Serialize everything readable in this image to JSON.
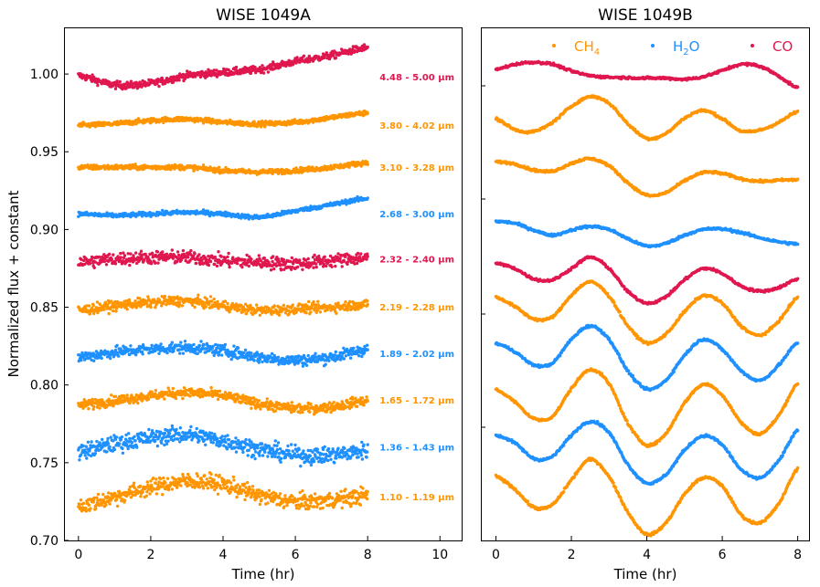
{
  "chart_data": [
    {
      "type": "scatter",
      "title": "WISE 1049A",
      "xlabel": "Time (hr)",
      "ylabel": "Normalized flux + constant",
      "xlim": [
        -0.4,
        10.6
      ],
      "ylim": [
        0.7,
        1.03
      ],
      "xticks": [
        "0",
        "2",
        "4",
        "6",
        "8",
        "10"
      ],
      "yticks": [
        "0.70",
        "0.75",
        "0.80",
        "0.85",
        "0.90",
        "0.95",
        "1.00"
      ],
      "series": [
        {
          "name": "4.48 - 5.00 μm",
          "molecule": "CO",
          "color": "#e0174f",
          "offset": 0.998,
          "noise": 0.0022,
          "t": [
            0,
            1,
            2,
            3,
            4,
            5,
            6,
            7,
            8
          ],
          "y": [
            0.999,
            0.993,
            0.994,
            0.999,
            1.001,
            1.003,
            1.008,
            1.012,
            1.017
          ]
        },
        {
          "name": "3.80 - 4.02 μm",
          "molecule": "CH4",
          "color": "#ff9500",
          "offset": 0.967,
          "noise": 0.0015,
          "t": [
            0,
            1,
            2,
            3,
            4,
            5,
            6,
            7,
            8
          ],
          "y": [
            0.967,
            0.968,
            0.97,
            0.971,
            0.969,
            0.968,
            0.969,
            0.972,
            0.975
          ]
        },
        {
          "name": "3.10 - 3.28 μm",
          "molecule": "CH4",
          "color": "#ff9500",
          "offset": 0.94,
          "noise": 0.0015,
          "t": [
            0,
            1,
            2,
            3,
            4,
            5,
            6,
            7,
            8
          ],
          "y": [
            0.94,
            0.94,
            0.94,
            0.94,
            0.938,
            0.937,
            0.938,
            0.94,
            0.943
          ]
        },
        {
          "name": "2.68 - 3.00 μm",
          "molecule": "H2O",
          "color": "#1e90ff",
          "offset": 0.91,
          "noise": 0.0013,
          "t": [
            0,
            1,
            2,
            3,
            4,
            5,
            6,
            7,
            8
          ],
          "y": [
            0.91,
            0.909,
            0.91,
            0.911,
            0.91,
            0.908,
            0.912,
            0.916,
            0.92
          ]
        },
        {
          "name": "2.32 - 2.40 μm",
          "molecule": "CO",
          "color": "#e0174f",
          "offset": 0.881,
          "noise": 0.004,
          "t": [
            0,
            1,
            2,
            3,
            4,
            5,
            6,
            7,
            8
          ],
          "y": [
            0.879,
            0.881,
            0.882,
            0.882,
            0.88,
            0.879,
            0.878,
            0.88,
            0.882
          ]
        },
        {
          "name": "2.19 - 2.28 μm",
          "molecule": "CH4",
          "color": "#ff9500",
          "offset": 0.85,
          "noise": 0.003,
          "t": [
            0,
            1,
            2,
            3,
            4,
            5,
            6,
            7,
            8
          ],
          "y": [
            0.848,
            0.851,
            0.853,
            0.854,
            0.851,
            0.848,
            0.849,
            0.85,
            0.852
          ]
        },
        {
          "name": "1.89 - 2.02 μm",
          "molecule": "H2O",
          "color": "#1e90ff",
          "offset": 0.82,
          "noise": 0.0035,
          "t": [
            0,
            1,
            2,
            3,
            4,
            5,
            6,
            7,
            8
          ],
          "y": [
            0.818,
            0.821,
            0.823,
            0.824,
            0.822,
            0.818,
            0.816,
            0.818,
            0.823
          ]
        },
        {
          "name": "1.65 - 1.72 μm",
          "molecule": "CH4",
          "color": "#ff9500",
          "offset": 0.79,
          "noise": 0.003,
          "t": [
            0,
            1,
            2,
            3,
            4,
            5,
            6,
            7,
            8
          ],
          "y": [
            0.787,
            0.79,
            0.793,
            0.795,
            0.793,
            0.788,
            0.785,
            0.786,
            0.79
          ]
        },
        {
          "name": "1.36 - 1.43 μm",
          "molecule": "H2O",
          "color": "#1e90ff",
          "offset": 0.76,
          "noise": 0.005,
          "t": [
            0,
            1,
            2,
            3,
            4,
            5,
            6,
            7,
            8
          ],
          "y": [
            0.757,
            0.762,
            0.766,
            0.768,
            0.764,
            0.759,
            0.755,
            0.755,
            0.758
          ]
        },
        {
          "name": "1.10 - 1.19 μm",
          "molecule": "CH4",
          "color": "#ff9500",
          "offset": 0.728,
          "noise": 0.005,
          "t": [
            0,
            1,
            2,
            3,
            4,
            5,
            6,
            7,
            8
          ],
          "y": [
            0.722,
            0.728,
            0.734,
            0.738,
            0.736,
            0.729,
            0.725,
            0.726,
            0.729
          ]
        }
      ]
    },
    {
      "type": "scatter",
      "title": "WISE 1049B",
      "xlabel": "Time (hr)",
      "ylabel": "",
      "xlim": [
        -0.4,
        8.3
      ],
      "ylim": [
        0.0,
        1.0
      ],
      "xticks": [
        "0",
        "2",
        "4",
        "6",
        "8"
      ],
      "legend": {
        "location": "top-right",
        "entries": [
          {
            "label_base": "CH",
            "label_sub": "4",
            "color": "#ff9500"
          },
          {
            "label_base": "H",
            "label_sub": "2",
            "label_tail": "O",
            "color": "#1e90ff"
          },
          {
            "label_base": "CO",
            "label_sub": "",
            "label_tail": "",
            "color": "#e0174f"
          }
        ]
      },
      "series": [
        {
          "molecule": "CO",
          "color": "#e0174f",
          "t": [
            0,
            0.5,
            1.0,
            1.5,
            2.0,
            2.5,
            3.0,
            3.5,
            4.0,
            4.5,
            5.0,
            5.5,
            6.0,
            6.5,
            7.0,
            7.5,
            8.0
          ],
          "y": [
            0.918,
            0.928,
            0.932,
            0.928,
            0.915,
            0.906,
            0.903,
            0.902,
            0.901,
            0.901,
            0.899,
            0.904,
            0.916,
            0.928,
            0.924,
            0.905,
            0.882
          ]
        },
        {
          "molecule": "CH4",
          "color": "#ff9500",
          "t": [
            0,
            0.5,
            1.0,
            1.5,
            2.0,
            2.5,
            3.0,
            3.5,
            4.0,
            4.5,
            5.0,
            5.5,
            6.0,
            6.5,
            7.0,
            7.5,
            8.0
          ],
          "y": [
            0.822,
            0.801,
            0.797,
            0.815,
            0.846,
            0.865,
            0.852,
            0.812,
            0.784,
            0.793,
            0.823,
            0.838,
            0.822,
            0.798,
            0.8,
            0.815,
            0.836
          ]
        },
        {
          "molecule": "CH4",
          "color": "#ff9500",
          "t": [
            0,
            0.5,
            1.0,
            1.5,
            2.0,
            2.5,
            3.0,
            3.5,
            4.0,
            4.5,
            5.0,
            5.5,
            6.0,
            6.5,
            7.0,
            7.5,
            8.0
          ],
          "y": [
            0.738,
            0.734,
            0.722,
            0.72,
            0.735,
            0.744,
            0.73,
            0.697,
            0.673,
            0.678,
            0.701,
            0.717,
            0.715,
            0.705,
            0.7,
            0.702,
            0.703
          ]
        },
        {
          "molecule": "H2O",
          "color": "#1e90ff",
          "t": [
            0,
            0.5,
            1.0,
            1.5,
            2.0,
            2.5,
            3.0,
            3.5,
            4.0,
            4.5,
            5.0,
            5.5,
            6.0,
            6.5,
            7.0,
            7.5,
            8.0
          ],
          "y": [
            0.622,
            0.618,
            0.605,
            0.595,
            0.605,
            0.612,
            0.606,
            0.588,
            0.574,
            0.579,
            0.595,
            0.606,
            0.607,
            0.6,
            0.59,
            0.582,
            0.578
          ]
        },
        {
          "molecule": "CO",
          "color": "#e0174f",
          "t": [
            0,
            0.5,
            1.0,
            1.5,
            2.0,
            2.5,
            3.0,
            3.5,
            4.0,
            4.5,
            5.0,
            5.5,
            6.0,
            6.5,
            7.0,
            7.5,
            8.0
          ],
          "y": [
            0.54,
            0.53,
            0.51,
            0.508,
            0.53,
            0.552,
            0.53,
            0.485,
            0.463,
            0.475,
            0.508,
            0.53,
            0.52,
            0.496,
            0.486,
            0.493,
            0.51
          ]
        },
        {
          "molecule": "CH4",
          "color": "#ff9500",
          "t": [
            0,
            0.5,
            1.0,
            1.5,
            2.0,
            2.5,
            3.0,
            3.5,
            4.0,
            4.5,
            5.0,
            5.5,
            6.0,
            6.5,
            7.0,
            7.5,
            8.0
          ],
          "y": [
            0.474,
            0.456,
            0.432,
            0.436,
            0.478,
            0.504,
            0.476,
            0.418,
            0.385,
            0.402,
            0.446,
            0.477,
            0.462,
            0.418,
            0.4,
            0.428,
            0.474
          ]
        },
        {
          "molecule": "H2O",
          "color": "#1e90ff",
          "t": [
            0,
            0.5,
            1.0,
            1.5,
            2.0,
            2.5,
            3.0,
            3.5,
            4.0,
            4.5,
            5.0,
            5.5,
            6.0,
            6.5,
            7.0,
            7.5,
            8.0
          ],
          "y": [
            0.384,
            0.368,
            0.342,
            0.346,
            0.392,
            0.418,
            0.392,
            0.33,
            0.295,
            0.312,
            0.361,
            0.392,
            0.372,
            0.331,
            0.312,
            0.342,
            0.386
          ]
        },
        {
          "molecule": "CH4",
          "color": "#ff9500",
          "t": [
            0,
            0.5,
            1.0,
            1.5,
            2.0,
            2.5,
            3.0,
            3.5,
            4.0,
            4.5,
            5.0,
            5.5,
            6.0,
            6.5,
            7.0,
            7.5,
            8.0
          ],
          "y": [
            0.294,
            0.27,
            0.238,
            0.242,
            0.296,
            0.333,
            0.305,
            0.228,
            0.186,
            0.208,
            0.268,
            0.304,
            0.283,
            0.23,
            0.208,
            0.244,
            0.306
          ]
        },
        {
          "molecule": "H2O",
          "color": "#1e90ff",
          "t": [
            0,
            0.5,
            1.0,
            1.5,
            2.0,
            2.5,
            3.0,
            3.5,
            4.0,
            4.5,
            5.0,
            5.5,
            6.0,
            6.5,
            7.0,
            7.5,
            8.0
          ],
          "y": [
            0.205,
            0.19,
            0.16,
            0.164,
            0.205,
            0.232,
            0.21,
            0.148,
            0.112,
            0.128,
            0.176,
            0.204,
            0.186,
            0.138,
            0.122,
            0.156,
            0.215
          ]
        },
        {
          "molecule": "CH4",
          "color": "#ff9500",
          "t": [
            0,
            0.5,
            1.0,
            1.5,
            2.0,
            2.5,
            3.0,
            3.5,
            4.0,
            4.5,
            5.0,
            5.5,
            6.0,
            6.5,
            7.0,
            7.5,
            8.0
          ],
          "y": [
            0.125,
            0.1,
            0.065,
            0.07,
            0.118,
            0.158,
            0.124,
            0.055,
            0.012,
            0.034,
            0.09,
            0.122,
            0.106,
            0.05,
            0.035,
            0.072,
            0.14
          ]
        }
      ]
    }
  ]
}
